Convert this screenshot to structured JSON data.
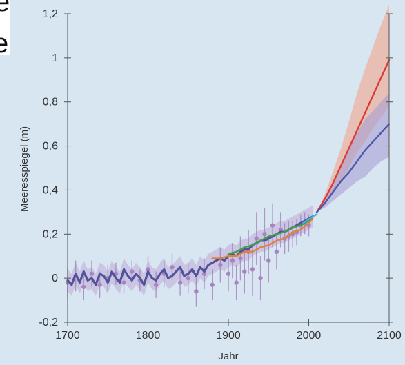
{
  "page_fragments": [
    "e",
    "e"
  ],
  "chart_data": {
    "type": "line",
    "xlabel": "Jahr",
    "ylabel": "Meeresspiegel (m)",
    "xlim": [
      1700,
      2100
    ],
    "ylim": [
      -0.2,
      1.2
    ],
    "x_ticks": [
      1700,
      1800,
      1900,
      2000,
      2100
    ],
    "y_ticks": [
      -0.2,
      0,
      0.2,
      0.4,
      0.6,
      0.8,
      1,
      1.2
    ],
    "x_tick_labels": [
      "1700",
      "1800",
      "1900",
      "2000",
      "2100"
    ],
    "y_tick_labels": [
      "-0,2",
      "0",
      "0,2",
      "0,4",
      "0,6",
      "0,8",
      "1",
      "1,2"
    ],
    "grid": false,
    "background_color": "#d8e6f2",
    "series": [
      {
        "color": "#53539b",
        "band_color": "#b9a3d3",
        "x": [
          1700,
          1705,
          1710,
          1715,
          1720,
          1725,
          1730,
          1735,
          1740,
          1745,
          1750,
          1755,
          1760,
          1765,
          1770,
          1775,
          1780,
          1785,
          1790,
          1795,
          1800,
          1805,
          1810,
          1815,
          1820,
          1825,
          1830,
          1835,
          1840,
          1845,
          1850,
          1855,
          1860,
          1865,
          1870,
          1875,
          1880,
          1885,
          1890,
          1895,
          1900,
          1905,
          1910,
          1915,
          1920,
          1925,
          1930,
          1935,
          1940,
          1945,
          1950,
          1955,
          1960,
          1965,
          1970,
          1975,
          1980,
          1985,
          1990,
          1995,
          2000,
          2005
        ],
        "y": [
          -0.01,
          -0.03,
          0.02,
          -0.02,
          0.03,
          -0.01,
          0.0,
          -0.03,
          0.02,
          0.01,
          -0.02,
          0.03,
          0.0,
          -0.02,
          0.04,
          0.01,
          -0.01,
          0.02,
          0.0,
          -0.03,
          0.03,
          0.0,
          -0.01,
          0.02,
          0.04,
          0.0,
          0.01,
          0.03,
          0.05,
          0.01,
          0.02,
          0.04,
          0.01,
          0.05,
          0.03,
          0.06,
          0.07,
          0.08,
          0.09,
          0.08,
          0.1,
          0.11,
          0.1,
          0.12,
          0.13,
          0.13,
          0.15,
          0.16,
          0.17,
          0.17,
          0.18,
          0.19,
          0.2,
          0.21,
          0.21,
          0.22,
          0.23,
          0.24,
          0.25,
          0.26,
          0.27,
          0.28
        ],
        "band": 0.05
      },
      {
        "color": "#e2813a",
        "x": [
          1880,
          1890,
          1900,
          1910,
          1920,
          1930,
          1940,
          1950,
          1960,
          1970,
          1980,
          1990,
          2000,
          2005
        ],
        "y": [
          0.09,
          0.09,
          0.1,
          0.1,
          0.12,
          0.12,
          0.14,
          0.15,
          0.17,
          0.18,
          0.21,
          0.22,
          0.25,
          0.27
        ]
      },
      {
        "color": "#3ea047",
        "x": [
          1900,
          1910,
          1920,
          1930,
          1940,
          1950,
          1960,
          1970,
          1980,
          1990,
          2000,
          2005
        ],
        "y": [
          0.11,
          0.12,
          0.14,
          0.15,
          0.17,
          0.19,
          0.2,
          0.21,
          0.23,
          0.24,
          0.26,
          0.28
        ]
      },
      {
        "color": "#3aaee0",
        "x": [
          1993,
          1997,
          2001,
          2005,
          2010
        ],
        "y": [
          0.25,
          0.26,
          0.27,
          0.28,
          0.29
        ]
      },
      {
        "color": "#d93c36",
        "band_color": "#f2a58a",
        "x": [
          2010,
          2020,
          2030,
          2040,
          2050,
          2060,
          2070,
          2080,
          2090,
          2100
        ],
        "y": [
          0.3,
          0.36,
          0.43,
          0.51,
          0.59,
          0.67,
          0.75,
          0.83,
          0.91,
          0.99
        ],
        "band_low": [
          0.3,
          0.34,
          0.39,
          0.44,
          0.5,
          0.57,
          0.62,
          0.68,
          0.73,
          0.78
        ],
        "band_high": [
          0.3,
          0.38,
          0.48,
          0.59,
          0.71,
          0.84,
          0.95,
          1.05,
          1.15,
          1.24
        ]
      },
      {
        "color": "#4f56a8",
        "band_color": "#a8a0d4",
        "x": [
          2010,
          2020,
          2030,
          2040,
          2050,
          2060,
          2070,
          2080,
          2090,
          2100
        ],
        "y": [
          0.3,
          0.34,
          0.39,
          0.44,
          0.48,
          0.53,
          0.58,
          0.62,
          0.66,
          0.7
        ],
        "band_low": [
          0.3,
          0.32,
          0.35,
          0.38,
          0.41,
          0.44,
          0.46,
          0.5,
          0.53,
          0.55
        ],
        "band_high": [
          0.3,
          0.36,
          0.44,
          0.52,
          0.6,
          0.66,
          0.72,
          0.76,
          0.8,
          0.84
        ]
      }
    ],
    "scatter": {
      "color": "#a885c0",
      "x": [
        1700,
        1710,
        1720,
        1730,
        1740,
        1750,
        1760,
        1770,
        1780,
        1790,
        1800,
        1810,
        1820,
        1830,
        1840,
        1850,
        1860,
        1870,
        1880,
        1890,
        1900,
        1905,
        1910,
        1915,
        1920,
        1925,
        1930,
        1935,
        1940,
        1945,
        1950,
        1955,
        1960,
        1965,
        1970,
        1975,
        1980,
        1985,
        1990,
        1995,
        2000
      ],
      "y": [
        -0.02,
        0.01,
        -0.04,
        0.02,
        -0.03,
        0.0,
        0.02,
        -0.02,
        0.03,
        -0.01,
        0.04,
        -0.03,
        0.02,
        0.05,
        -0.02,
        0.0,
        -0.06,
        0.02,
        -0.03,
        0.06,
        0.02,
        0.08,
        -0.02,
        0.09,
        0.03,
        0.12,
        0.04,
        0.18,
        0.0,
        0.2,
        0.08,
        0.24,
        0.12,
        0.22,
        0.18,
        0.19,
        0.2,
        0.21,
        0.24,
        0.25,
        0.24
      ],
      "err": [
        0.07,
        0.07,
        0.06,
        0.06,
        0.06,
        0.06,
        0.05,
        0.05,
        0.05,
        0.05,
        0.06,
        0.06,
        0.06,
        0.06,
        0.06,
        0.07,
        0.07,
        0.07,
        0.07,
        0.08,
        0.08,
        0.08,
        0.08,
        0.1,
        0.1,
        0.1,
        0.12,
        0.12,
        0.1,
        0.12,
        0.1,
        0.1,
        0.08,
        0.08,
        0.07,
        0.07,
        0.06,
        0.06,
        0.05,
        0.05,
        0.05
      ]
    }
  }
}
